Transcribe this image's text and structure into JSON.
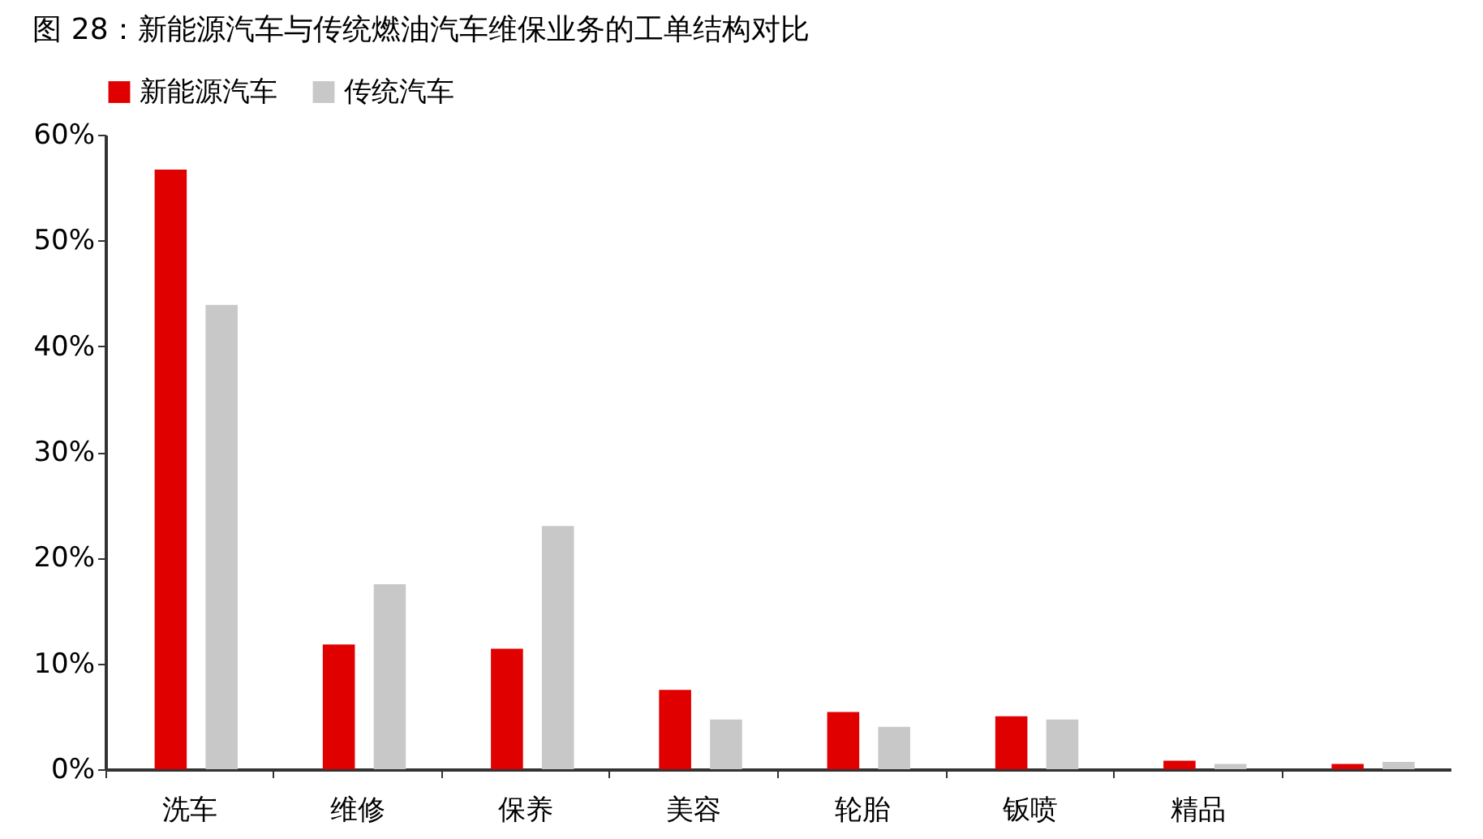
{
  "chart_data": {
    "type": "bar",
    "title": "图 28：新能源汽车与传统燃油汽车维保业务的工单结构对比",
    "categories": [
      "洗车",
      "维修",
      "保养",
      "美容",
      "轮胎",
      "钣喷",
      "精品",
      null
    ],
    "series": [
      {
        "name": "新能源汽车",
        "color": "#e00000",
        "values": [
          56.7,
          11.8,
          11.4,
          7.5,
          5.4,
          5.0,
          0.8,
          0.5
        ]
      },
      {
        "name": "传统汽车",
        "color": "#c8c8c8",
        "values": [
          43.9,
          17.5,
          23.0,
          4.7,
          4.0,
          4.7,
          0.5,
          0.7
        ]
      }
    ],
    "ylim": [
      0,
      60
    ],
    "yticks": [
      {
        "value": 0,
        "label": "0%"
      },
      {
        "value": 10,
        "label": "10%"
      },
      {
        "value": 20,
        "label": "20%"
      },
      {
        "value": 30,
        "label": "30%"
      },
      {
        "value": 40,
        "label": "40%"
      },
      {
        "value": 50,
        "label": "50%"
      },
      {
        "value": 60,
        "label": "60%"
      }
    ],
    "grid": false,
    "legend": "top"
  }
}
